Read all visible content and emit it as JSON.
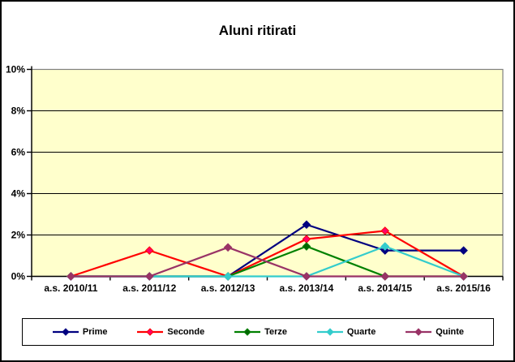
{
  "chart_data": {
    "type": "line",
    "title": "Aluni ritirati",
    "xlabel": "",
    "ylabel": "",
    "ylim": [
      0,
      10
    ],
    "y_tick_step": 2,
    "y_tick_labels": [
      "0%",
      "2%",
      "4%",
      "6%",
      "8%",
      "10%"
    ],
    "grid": "horizontal",
    "legend_position": "bottom",
    "plot_background": "#FFFFCC",
    "plot_border_color": "#808080",
    "gridline_color": "#000000",
    "axis_color": "#000000",
    "categories": [
      "a.s. 2010/11",
      "a.s. 2011/12",
      "a.s. 2012/13",
      "a.s. 2013/14",
      "a.s. 2014/15",
      "a.s. 2015/16"
    ],
    "series": [
      {
        "name": "Prime",
        "color": "#000080",
        "marker_color": "#000080",
        "marker": "diamond",
        "values": [
          0,
          0,
          0,
          2.5,
          1.25,
          1.25
        ]
      },
      {
        "name": "Seconde",
        "color": "#FF0000",
        "marker_color": "#FF0066",
        "marker": "diamond",
        "values": [
          0,
          1.25,
          0,
          1.8,
          2.2,
          0
        ]
      },
      {
        "name": "Terze",
        "color": "#008000",
        "marker_color": "#006600",
        "marker": "diamond",
        "values": [
          0,
          0,
          0,
          1.45,
          0,
          0
        ]
      },
      {
        "name": "Quarte",
        "color": "#33CCCC",
        "marker_color": "#33CCCC",
        "marker": "diamond",
        "values": [
          0,
          0,
          0,
          0,
          1.45,
          0
        ]
      },
      {
        "name": "Quinte",
        "color": "#993366",
        "marker_color": "#993366",
        "marker": "diamond",
        "values": [
          0,
          0,
          1.4,
          0,
          0,
          0
        ]
      }
    ]
  }
}
